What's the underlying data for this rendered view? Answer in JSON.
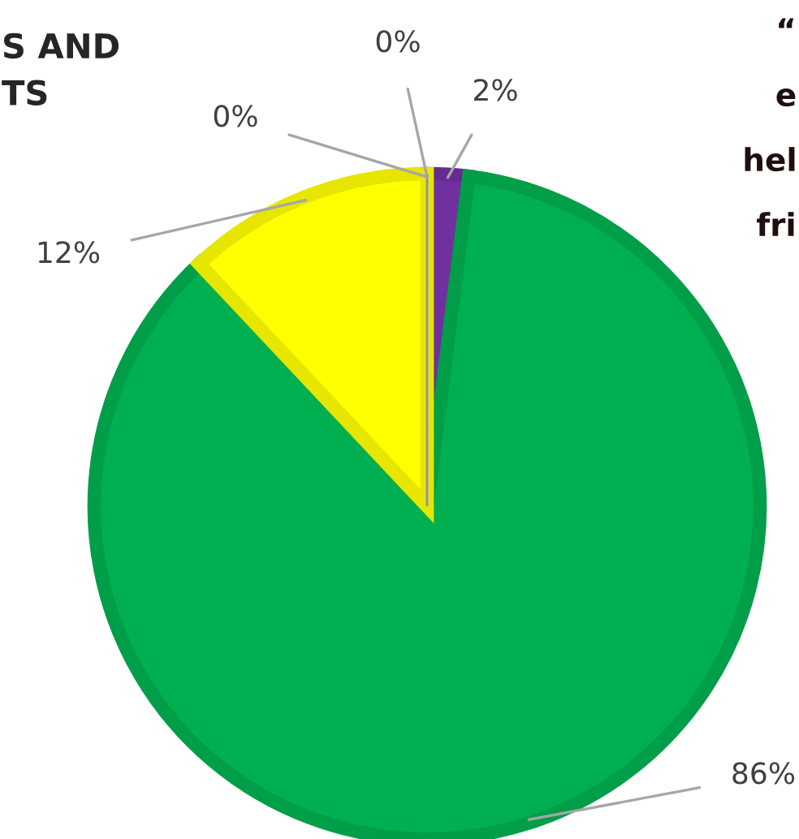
{
  "chart_data": {
    "type": "pie",
    "title": "S AND\nTS",
    "categories": [
      null,
      null,
      null,
      null,
      null
    ],
    "values": [
      2,
      86,
      12,
      0,
      0
    ],
    "value_labels": [
      "2%",
      "86%",
      "12%",
      "0%",
      "0%"
    ],
    "colors": [
      "#7030a0",
      "#00b050",
      "#ffff00",
      "#d9d9d9",
      "#a6a6a6"
    ],
    "annotations": [
      "“",
      "e",
      "hel",
      "fri"
    ],
    "legend": false
  }
}
